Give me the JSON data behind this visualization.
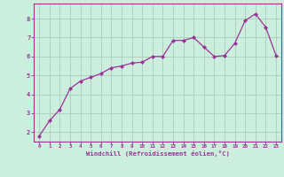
{
  "x": [
    0,
    1,
    2,
    3,
    4,
    5,
    6,
    7,
    8,
    9,
    10,
    11,
    12,
    13,
    14,
    15,
    16,
    17,
    18,
    19,
    20,
    21,
    22,
    23
  ],
  "y": [
    1.8,
    2.6,
    3.2,
    4.3,
    4.7,
    4.9,
    5.1,
    5.4,
    5.5,
    5.65,
    5.7,
    6.0,
    6.0,
    6.85,
    6.85,
    7.0,
    6.5,
    6.0,
    6.05,
    6.7,
    7.9,
    8.25,
    7.55,
    6.05
  ],
  "line_color": "#993399",
  "marker": "D",
  "marker_size": 2.0,
  "bg_color": "#cceedd",
  "grid_color": "#aaccbb",
  "xlabel": "Windchill (Refroidissement éolien,°C)",
  "ylabel_ticks": [
    2,
    3,
    4,
    5,
    6,
    7,
    8
  ],
  "xlim": [
    -0.5,
    23.5
  ],
  "ylim": [
    1.5,
    8.8
  ],
  "tick_color": "#993399",
  "spine_color": "#993399"
}
